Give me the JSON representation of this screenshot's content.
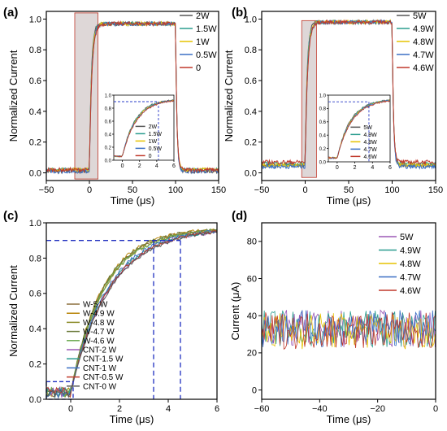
{
  "figure": {
    "panels": {
      "a": {
        "letter": "(a)"
      },
      "b": {
        "letter": "(b)"
      },
      "c": {
        "letter": "(c)"
      },
      "d": {
        "letter": "(d)"
      }
    }
  },
  "chart_data": [
    {
      "panel": "a",
      "type": "line",
      "xlabel": "Time (μs)",
      "ylabel": "Normalized Current",
      "xlim": [
        -50,
        150
      ],
      "ylim": [
        -0.05,
        1.05
      ],
      "xticks": [
        -50,
        0,
        50,
        100,
        150
      ],
      "yticks": [
        0.0,
        0.2,
        0.4,
        0.6,
        0.8,
        1.0
      ],
      "ytick_labels": [
        "0.0",
        "0.2",
        "0.4",
        "0.6",
        "0.8",
        "1.0"
      ],
      "legend_position": "top-right",
      "highlight_region": {
        "x": [
          -17,
          10
        ],
        "y": [
          -0.04,
          1.04
        ]
      },
      "series": [
        {
          "name": "2W",
          "color": "#555555",
          "low": 0.01,
          "high": 0.97
        },
        {
          "name": "1.5W",
          "color": "#2a9d8f",
          "low": 0.02,
          "high": 0.97
        },
        {
          "name": "1W",
          "color": "#e6c200",
          "low": 0.02,
          "high": 0.97
        },
        {
          "name": "0.5W",
          "color": "#3a6fc4",
          "low": 0.01,
          "high": 0.97
        },
        {
          "name": "0",
          "color": "#c0392b",
          "low": 0.02,
          "high": 0.97
        }
      ],
      "inset": {
        "xlim": [
          -1,
          6
        ],
        "ylim": [
          0,
          1
        ],
        "xticks": [
          0,
          2,
          4,
          6
        ],
        "yticks": [
          0.0,
          0.2,
          0.4,
          0.6,
          0.8,
          1.0
        ],
        "ytick_labels": [
          "0.0",
          "0.2",
          "0.4",
          "0.6",
          "0.8",
          "1.0"
        ],
        "dashed_level": 0.9,
        "dashed_x": 4.2,
        "legend": [
          "2W",
          "1.5W",
          "1W",
          "0.5W",
          "0"
        ]
      }
    },
    {
      "panel": "b",
      "type": "line",
      "xlabel": "Time (μs)",
      "ylabel": "Normalized Current",
      "xlim": [
        -50,
        150
      ],
      "ylim": [
        -0.05,
        1.05
      ],
      "xticks": [
        -50,
        0,
        50,
        100,
        150
      ],
      "yticks": [
        0.0,
        0.2,
        0.4,
        0.6,
        0.8,
        1.0
      ],
      "ytick_labels": [
        "0.0",
        "0.2",
        "0.4",
        "0.6",
        "0.8",
        "1.0"
      ],
      "legend_position": "top-right",
      "highlight_region": {
        "x": [
          -4,
          13
        ],
        "y": [
          -0.03,
          0.99
        ]
      },
      "series": [
        {
          "name": "5W",
          "color": "#555555",
          "low": 0.05,
          "high": 0.98
        },
        {
          "name": "4.9W",
          "color": "#2a9d8f",
          "low": 0.06,
          "high": 0.98
        },
        {
          "name": "4.8W",
          "color": "#e6c200",
          "low": 0.05,
          "high": 0.98
        },
        {
          "name": "4.7W",
          "color": "#3a6fc4",
          "low": 0.04,
          "high": 0.98
        },
        {
          "name": "4.6W",
          "color": "#c0392b",
          "low": 0.07,
          "high": 0.98
        }
      ],
      "inset": {
        "xlim": [
          -1,
          6
        ],
        "ylim": [
          0,
          1
        ],
        "xticks": [
          0,
          2,
          4,
          6
        ],
        "yticks": [
          0.0,
          0.2,
          0.4,
          0.6,
          0.8,
          1.0
        ],
        "ytick_labels": [
          "0.0",
          "0.2",
          "0.4",
          "0.6",
          "0.8",
          "1.0"
        ],
        "dashed_level": 0.9,
        "dashed_x": 3.6,
        "legend": [
          "5W",
          "4.9W",
          "4.8W",
          "4.7W",
          "4.6W"
        ]
      }
    },
    {
      "panel": "c",
      "type": "line",
      "xlabel": "Time (μs)",
      "ylabel": "Normalized Current",
      "xlim": [
        -1,
        6
      ],
      "ylim": [
        0,
        1
      ],
      "xticks": [
        0,
        2,
        4,
        6
      ],
      "yticks": [
        0.0,
        0.2,
        0.4,
        0.6,
        0.8,
        1.0
      ],
      "ytick_labels": [
        "0.0",
        "0.2",
        "0.4",
        "0.6",
        "0.8",
        "1.0"
      ],
      "legend_position": "center-left",
      "dashed_level": 0.9,
      "dashed_x": [
        3.4,
        4.5
      ],
      "low_box": {
        "x": [
          -1,
          0.1
        ],
        "y": [
          0,
          0.1
        ]
      },
      "series": [
        {
          "name": "W-5 W",
          "color": "#8a6d3b",
          "tau": 1.35
        },
        {
          "name": "W-4.9 W",
          "color": "#b8860b",
          "tau": 1.3
        },
        {
          "name": "W-4.8 W",
          "color": "#8c8c2a",
          "tau": 1.4
        },
        {
          "name": "W-4.7 W",
          "color": "#6b7b3a",
          "tau": 1.32
        },
        {
          "name": "W-4.6 W",
          "color": "#6aa84f",
          "tau": 1.38
        },
        {
          "name": "CNT-2 W",
          "color": "#9b59b6",
          "tau": 1.6
        },
        {
          "name": "CNT-1.5 W",
          "color": "#2a9d8f",
          "tau": 1.55
        },
        {
          "name": "CNT-1 W",
          "color": "#3a6fc4",
          "tau": 1.5
        },
        {
          "name": "CNT-0.5 W",
          "color": "#c0392b",
          "tau": 1.58
        },
        {
          "name": "CNT-0 W",
          "color": "#555555",
          "tau": 1.62
        }
      ]
    },
    {
      "panel": "d",
      "type": "line",
      "xlabel": "Time (μs)",
      "ylabel": "Current (μA)",
      "xlim": [
        -60,
        0
      ],
      "ylim": [
        -5,
        90
      ],
      "xticks": [
        -60,
        -40,
        -20,
        0
      ],
      "yticks": [
        0,
        20,
        40,
        60,
        80
      ],
      "ytick_labels": [
        "0",
        "20",
        "40",
        "60",
        "80"
      ],
      "legend_position": "top-right",
      "noise_band": [
        24,
        44
      ],
      "series": [
        {
          "name": "5W",
          "color": "#9b59b6",
          "mean": 33
        },
        {
          "name": "4.9W",
          "color": "#2a9d8f",
          "mean": 33
        },
        {
          "name": "4.8W",
          "color": "#e6c200",
          "mean": 32
        },
        {
          "name": "4.7W",
          "color": "#3a6fc4",
          "mean": 33
        },
        {
          "name": "4.6W",
          "color": "#c0392b",
          "mean": 32
        }
      ]
    }
  ]
}
